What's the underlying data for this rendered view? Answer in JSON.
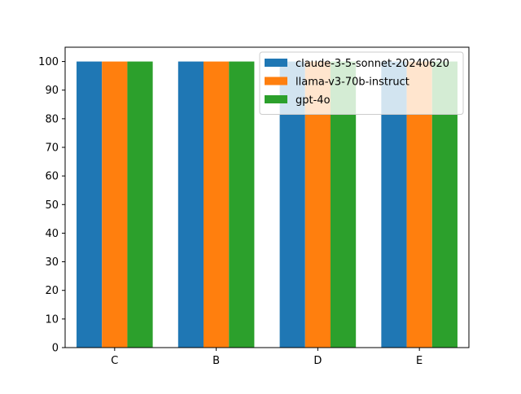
{
  "chart_data": {
    "type": "bar",
    "title": "",
    "xlabel": "",
    "ylabel": "",
    "categories": [
      "C",
      "B",
      "D",
      "E"
    ],
    "series": [
      {
        "name": "claude-3-5-sonnet-20240620",
        "color": "#1f77b4",
        "values": [
          100,
          100,
          100,
          100
        ]
      },
      {
        "name": "llama-v3-70b-instruct",
        "color": "#ff7f0e",
        "values": [
          100,
          100,
          100,
          100
        ]
      },
      {
        "name": "gpt-4o",
        "color": "#2ca02c",
        "values": [
          100,
          100,
          100,
          100
        ]
      }
    ],
    "ylim": [
      0,
      100
    ],
    "yticks": [
      0,
      10,
      20,
      30,
      40,
      50,
      60,
      70,
      80,
      90,
      100
    ],
    "grid": false,
    "legend_position": "top-right"
  }
}
